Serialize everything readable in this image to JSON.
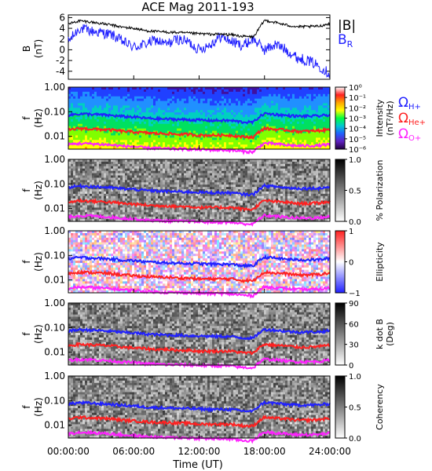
{
  "chart_data": [
    {
      "type": "line",
      "panel": "magnetic-field",
      "title": "ACE Mag 2011-193",
      "ylabel": "B",
      "yunit": "(nT)",
      "ylim": [
        -5.5,
        6.5
      ],
      "yticks": [
        "6",
        "4",
        "2",
        "0",
        "-2",
        "-4"
      ],
      "ytick_values": [
        6,
        4,
        2,
        0,
        -2,
        -4
      ],
      "x_range_hours": [
        0,
        24
      ],
      "series": [
        {
          "name": "|B|",
          "color": "#000000",
          "x": [
            0,
            1,
            2,
            3,
            4,
            5,
            6,
            7,
            8,
            9,
            10,
            11,
            12,
            13,
            14,
            15,
            16,
            17,
            18,
            19,
            20,
            21,
            22,
            23,
            24
          ],
          "values": [
            4.8,
            5.4,
            5.2,
            4.9,
            4.6,
            4.2,
            4.0,
            3.6,
            3.4,
            3.3,
            3.2,
            3.1,
            3.0,
            2.9,
            2.9,
            2.8,
            2.5,
            2.4,
            5.5,
            5.1,
            4.6,
            4.3,
            4.3,
            4.4,
            4.9
          ]
        },
        {
          "name": "B",
          "subscript": "R",
          "color": "#2020ff",
          "x": [
            0,
            1,
            2,
            3,
            4,
            5,
            6,
            7,
            8,
            9,
            10,
            11,
            12,
            13,
            14,
            15,
            16,
            17,
            18,
            19,
            20,
            21,
            22,
            23,
            24
          ],
          "values": [
            1.5,
            4.0,
            3.5,
            3.2,
            2.8,
            1.5,
            0.5,
            1.0,
            1.8,
            1.0,
            2.0,
            1.5,
            0.0,
            1.0,
            2.5,
            1.5,
            0.8,
            2.0,
            0.0,
            1.0,
            0.0,
            -1.5,
            -2.0,
            -3.0,
            -4.5
          ]
        }
      ]
    },
    {
      "type": "heatmap",
      "panel": "intensity",
      "ylabel": "f",
      "yunit": "(Hz)",
      "yscale": "log",
      "ylim": [
        0.003,
        1.0
      ],
      "yticks": [
        "1.00",
        "0.10",
        "0.01"
      ],
      "ytick_values": [
        1.0,
        0.1,
        0.01
      ],
      "colorbar": {
        "label": "Intensity",
        "unit": "(nT²/Hz)",
        "ticks": [
          "10⁰",
          "10⁻¹",
          "10⁻²",
          "10⁻³",
          "10⁻⁴",
          "10⁻⁵",
          "10⁻⁶"
        ],
        "colors": [
          "#ffffff",
          "#ff2020",
          "#ffa500",
          "#ffff00",
          "#00ff40",
          "#00c8d0",
          "#2060ff",
          "#6020c0",
          "#200040"
        ]
      },
      "legend": [
        {
          "name": "Ω",
          "subscript": "H+",
          "color": "#2020ff"
        },
        {
          "name": "Ω",
          "subscript": "He+",
          "color": "#ff2020"
        },
        {
          "name": "Ω",
          "subscript": "O+",
          "color": "#ff20ff"
        }
      ]
    },
    {
      "type": "heatmap",
      "panel": "polarization",
      "ylabel": "f",
      "yunit": "(Hz)",
      "yscale": "log",
      "yticks": [
        "1.00",
        "0.10",
        "0.01"
      ],
      "ytick_values": [
        1.0,
        0.1,
        0.01
      ],
      "colorbar": {
        "label": "% Polarization",
        "ticks": [
          "1.0",
          "0.5",
          "0.0"
        ],
        "colors": [
          "#000000",
          "#ffffff"
        ]
      }
    },
    {
      "type": "heatmap",
      "panel": "ellipticity",
      "ylabel": "f",
      "yunit": "(Hz)",
      "yscale": "log",
      "yticks": [
        "1.00",
        "0.10",
        "0.01"
      ],
      "ytick_values": [
        1.0,
        0.1,
        0.01
      ],
      "colorbar": {
        "label": "Ellipticity",
        "ticks": [
          "1",
          "0",
          "−1"
        ],
        "colors": [
          "#ff2020",
          "#ffffff",
          "#2020ff"
        ]
      }
    },
    {
      "type": "heatmap",
      "panel": "wave-angle",
      "ylabel": "f",
      "yunit": "(Hz)",
      "yscale": "log",
      "yticks": [
        "1.00",
        "0.10",
        "0.01"
      ],
      "ytick_values": [
        1.0,
        0.1,
        0.01
      ],
      "colorbar": {
        "label": "k dot B",
        "unit": "(Deg)",
        "ticks": [
          "90",
          "60",
          "30",
          "0"
        ],
        "colors": [
          "#000000",
          "#ffffff"
        ]
      }
    },
    {
      "type": "heatmap",
      "panel": "coherency",
      "ylabel": "f",
      "yunit": "(Hz)",
      "yscale": "log",
      "yticks": [
        "1.00",
        "0.10",
        "0.01"
      ],
      "ytick_values": [
        1.0,
        0.1,
        0.01
      ],
      "colorbar": {
        "label": "Coherency",
        "ticks": [
          "1.0",
          "0.5",
          "0.0"
        ],
        "colors": [
          "#000000",
          "#ffffff"
        ]
      }
    }
  ],
  "gyrofrequency_lines": {
    "x_hours": [
      0,
      1,
      2,
      3,
      4,
      5,
      6,
      7,
      8,
      9,
      10,
      11,
      12,
      13,
      14,
      15,
      16,
      17,
      18,
      19,
      20,
      21,
      22,
      23,
      24
    ],
    "H+": [
      0.073,
      0.082,
      0.079,
      0.075,
      0.07,
      0.064,
      0.061,
      0.055,
      0.052,
      0.05,
      0.049,
      0.047,
      0.046,
      0.044,
      0.044,
      0.043,
      0.038,
      0.037,
      0.084,
      0.078,
      0.07,
      0.066,
      0.066,
      0.067,
      0.075
    ],
    "He+": [
      0.018,
      0.021,
      0.02,
      0.019,
      0.018,
      0.016,
      0.015,
      0.014,
      0.013,
      0.013,
      0.012,
      0.012,
      0.011,
      0.011,
      0.011,
      0.011,
      0.0095,
      0.0092,
      0.021,
      0.019,
      0.018,
      0.016,
      0.016,
      0.017,
      0.019
    ],
    "O+": [
      0.0046,
      0.0051,
      0.005,
      0.0047,
      0.0044,
      0.004,
      0.0038,
      0.0034,
      0.0033,
      0.0031,
      0.0031,
      0.003,
      0.0029,
      0.0028,
      0.0028,
      0.0027,
      0.0024,
      0.0023,
      0.0052,
      0.0049,
      0.0044,
      0.0041,
      0.0041,
      0.0042,
      0.0047
    ]
  },
  "x_axis": {
    "label": "Time (UT)",
    "ticks": [
      "00:00:00",
      "06:00:00",
      "12:00:00",
      "18:00:00",
      "24:00:00"
    ],
    "tick_hours": [
      0,
      6,
      12,
      18,
      24
    ]
  }
}
